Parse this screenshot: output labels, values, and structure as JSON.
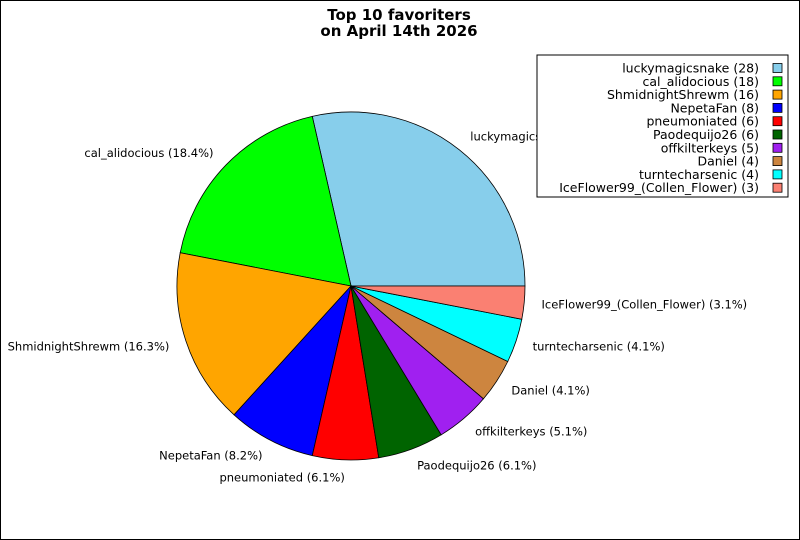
{
  "chart_data": {
    "type": "pie",
    "title_lines": [
      "Top 10 favoriters",
      "on April 14th 2026"
    ],
    "legend_position": "top-right",
    "slices": [
      {
        "name": "luckymagicsnake",
        "value": 28,
        "percent": "28.6%",
        "color": "#87ceeb"
      },
      {
        "name": "cal_alidocious",
        "value": 18,
        "percent": "18.4%",
        "color": "#00ff00"
      },
      {
        "name": "ShmidnightShrewm",
        "value": 16,
        "percent": "16.3%",
        "color": "#ffa500"
      },
      {
        "name": "NepetaFan",
        "value": 8,
        "percent": "8.2%",
        "color": "#0000ff"
      },
      {
        "name": "pneumoniated",
        "value": 6,
        "percent": "6.1%",
        "color": "#ff0000"
      },
      {
        "name": "Paodequijo26",
        "value": 6,
        "percent": "6.1%",
        "color": "#006400"
      },
      {
        "name": "offkilterkeys",
        "value": 5,
        "percent": "5.1%",
        "color": "#a020f0"
      },
      {
        "name": "Daniel",
        "value": 4,
        "percent": "4.1%",
        "color": "#cd853f"
      },
      {
        "name": "turntecharsenic",
        "value": 4,
        "percent": "4.1%",
        "color": "#00ffff"
      },
      {
        "name": "IceFlower99_(Collen_Flower)",
        "value": 3,
        "percent": "3.1%",
        "color": "#fa8072"
      }
    ]
  }
}
